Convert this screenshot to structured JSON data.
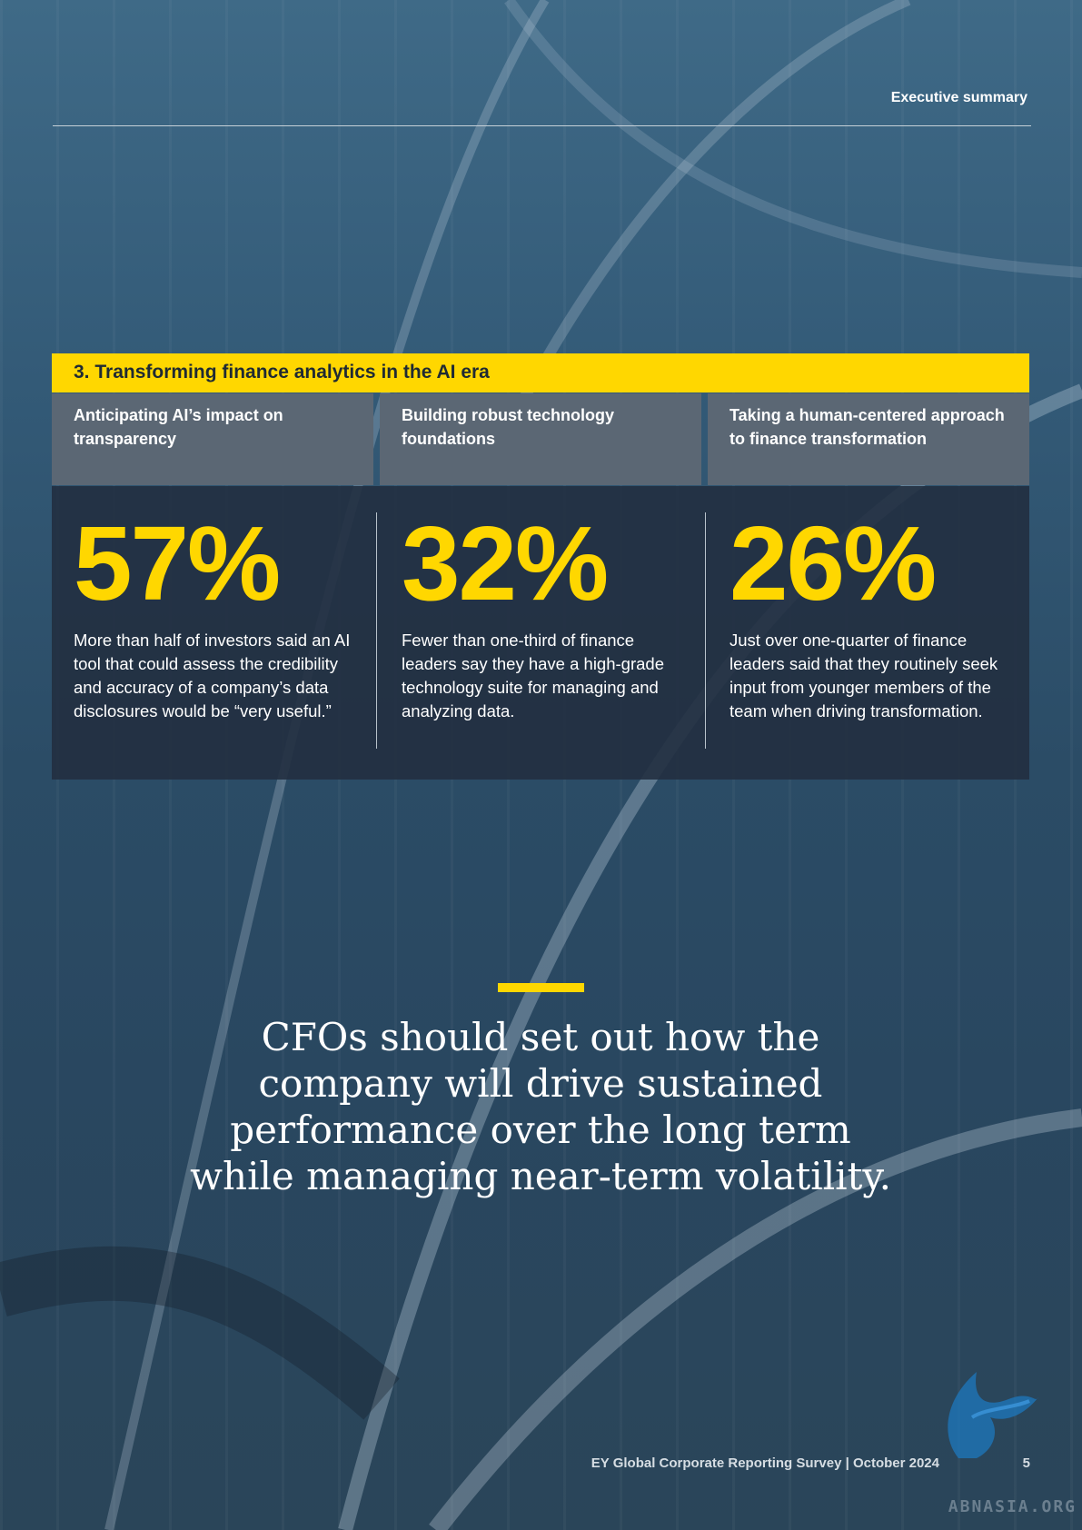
{
  "header": {
    "section_label": "Executive summary"
  },
  "section": {
    "title": "3. Transforming finance analytics in the AI era",
    "columns": [
      {
        "heading": "Anticipating AI’s impact on transparency",
        "stat": "57%",
        "text": "More than half of investors said an AI tool that could assess the credibility and accuracy of a company’s data disclosures would be “very useful.”"
      },
      {
        "heading": "Building robust technology foundations",
        "stat": "32%",
        "text": "Fewer than one-third of finance leaders say they have a high-grade technology suite for managing and analyzing data."
      },
      {
        "heading": "Taking a human-centered approach to finance transformation",
        "stat": "26%",
        "text": "Just over one-quarter of finance leaders said that they routinely seek input from younger members of the team when driving transformation."
      }
    ]
  },
  "quote": {
    "text": "CFOs should set out how the company will drive sustained performance over the long term while managing near-term volatility."
  },
  "footer": {
    "publication": "EY Global Corporate Reporting Survey | October 2024",
    "page_number": "5",
    "watermark": "ABNASIA.ORG"
  },
  "colors": {
    "accent_yellow": "#ffd700",
    "panel_dark": "#222f40",
    "header_cell": "#5b6774"
  }
}
